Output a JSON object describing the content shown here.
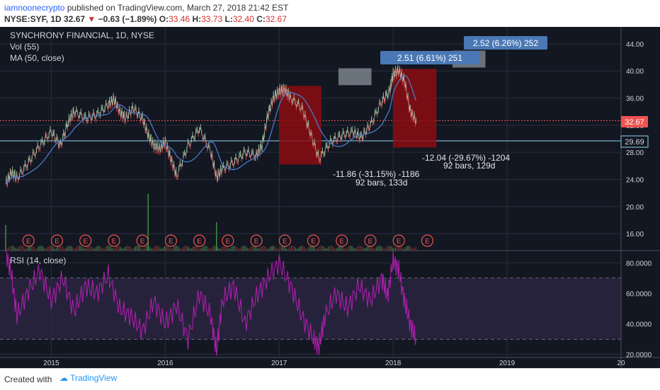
{
  "header": {
    "user": "iamnoonecrypto",
    "published_text": " published on TradingView.com, March 27, 2018 21:42 EST",
    "symbol": "NYSE:SYF, 1D",
    "last": "32.67",
    "change": "−0.63 (−1.89%)",
    "open_label": "O:",
    "open": "33.46",
    "high_label": "H:",
    "high": "33.73",
    "low_label": "L:",
    "low": "32.40",
    "close_label": "C:",
    "close": "32.67"
  },
  "legend": {
    "title": "SYNCHRONY FINANCIAL, 1D, NYSE",
    "vol": "Vol (55)",
    "ma": "MA (50, close)",
    "rsi": "RSI (14, close)"
  },
  "annotations": {
    "top1": "2.51 (6.61%) 251",
    "top2": "2.52 (6.26%) 252",
    "mid1_line1": "-11.86 (-31.15%) -1186",
    "mid1_line2": "92 bars, 133d",
    "mid2_line1": "-12.04 (-29.67%) -1204",
    "mid2_line2": "92 bars, 129d",
    "price_tag": "32.67",
    "support_tag": "29.69",
    "earnings_marker": "E"
  },
  "chart_data": {
    "type": "line",
    "title": "SYNCHRONY FINANCIAL, 1D, NYSE",
    "x_ticks": [
      "2015",
      "2016",
      "2017",
      "2018",
      "2019",
      "20"
    ],
    "x_range": [
      2014.55,
      2020.0
    ],
    "y_ticks": [
      "16.00",
      "20.00",
      "24.00",
      "28.00",
      "32.00",
      "36.00",
      "40.00",
      "44.00"
    ],
    "ylim": [
      13.5,
      46.5
    ],
    "series": [
      {
        "x": [
          2014.6,
          2014.65,
          2014.7,
          2014.8,
          2014.9,
          2015.0,
          2015.08,
          2015.15,
          2015.2,
          2015.3,
          2015.4,
          2015.5,
          2015.55,
          2015.6,
          2015.65,
          2015.72,
          2015.8,
          2015.85,
          2015.9,
          2015.95,
          2016.0,
          2016.05,
          2016.1,
          2016.2,
          2016.3,
          2016.4,
          2016.45,
          2016.5,
          2016.6,
          2016.7,
          2016.8,
          2016.85,
          2016.9,
          2016.95,
          2017.0,
          2017.05,
          2017.1,
          2017.2,
          2017.27,
          2017.35,
          2017.45,
          2017.55,
          2017.65,
          2017.72,
          2017.8,
          2017.9,
          2017.97,
          2018.0,
          2018.05,
          2018.1,
          2018.15,
          2018.2
        ],
        "values": [
          23.3,
          25.0,
          24.2,
          26.5,
          29.0,
          31.0,
          29.0,
          32.5,
          34.0,
          33.0,
          33.5,
          35.0,
          35.8,
          34.0,
          33.0,
          34.5,
          33.0,
          30.5,
          29.0,
          28.5,
          29.5,
          27.0,
          24.5,
          29.0,
          31.5,
          28.0,
          24.3,
          25.5,
          26.5,
          28.0,
          27.5,
          29.0,
          33.5,
          36.0,
          37.0,
          37.2,
          36.0,
          34.5,
          31.0,
          27.0,
          29.5,
          30.5,
          31.0,
          30.2,
          32.0,
          35.5,
          37.0,
          39.5,
          40.0,
          38.5,
          34.0,
          32.67
        ]
      }
    ],
    "ma_label": "MA (50, close)",
    "volume_spikes": [
      {
        "x": 2014.6,
        "v": 0.45
      },
      {
        "x": 2015.85,
        "v": 1.0
      },
      {
        "x": 2016.45,
        "v": 0.5
      }
    ],
    "rsi": {
      "label": "RSI (14, close)",
      "y_ticks": [
        "20.0000",
        "40.0000",
        "60.0000",
        "80.0000"
      ],
      "ylim": [
        18,
        88
      ],
      "levels": [
        70,
        30
      ],
      "x": [
        2014.6,
        2014.65,
        2014.7,
        2014.8,
        2014.9,
        2015.0,
        2015.1,
        2015.2,
        2015.3,
        2015.4,
        2015.5,
        2015.6,
        2015.7,
        2015.8,
        2015.9,
        2016.0,
        2016.1,
        2016.2,
        2016.3,
        2016.4,
        2016.45,
        2016.5,
        2016.6,
        2016.7,
        2016.8,
        2016.9,
        2017.0,
        2017.1,
        2017.2,
        2017.3,
        2017.35,
        2017.4,
        2017.5,
        2017.6,
        2017.7,
        2017.8,
        2017.9,
        2017.95,
        2018.0,
        2018.05,
        2018.1,
        2018.15,
        2018.2
      ],
      "values": [
        88,
        72,
        45,
        62,
        75,
        55,
        70,
        48,
        65,
        60,
        72,
        50,
        45,
        35,
        55,
        40,
        52,
        30,
        60,
        45,
        22,
        55,
        65,
        40,
        58,
        70,
        80,
        65,
        45,
        30,
        25,
        45,
        60,
        50,
        65,
        55,
        70,
        58,
        82,
        75,
        55,
        40,
        30
      ]
    },
    "measurements": [
      {
        "label": "-11.86 (-31.15%) -1186",
        "bars": "92 bars, 133d"
      },
      {
        "label": "-12.04 (-29.67%) -1204",
        "bars": "92 bars, 129d"
      }
    ],
    "horizontal_levels": [
      32.67,
      29.69
    ]
  },
  "footer": {
    "created_with": "Created with",
    "brand": "TradingView"
  },
  "colors": {
    "background": "#131722",
    "grid": "#2a2e39",
    "candle_up": "#8fbf8f",
    "candle_down": "#c94a4a",
    "ma": "#4a78c8",
    "rsi": "#b31fb3",
    "rsi_band": "#2c2440",
    "box_red": "#8b0d12",
    "label_blue": "#4a78b5",
    "support": "#8fd3ef",
    "price_tag": "#ef5350"
  }
}
